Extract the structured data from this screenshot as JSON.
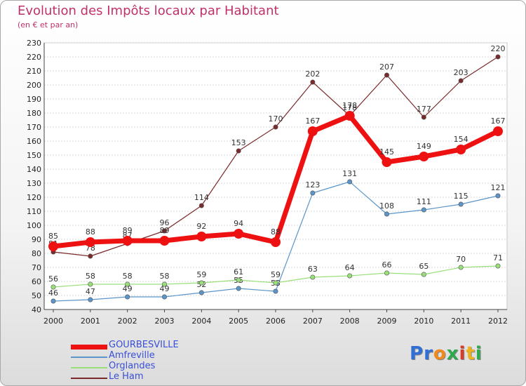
{
  "title": "Evolution des Impôts locaux par Habitant",
  "subtitle": "(en € et par an)",
  "logo_text": "Proxiti",
  "colors": {
    "gourbesville": "#ee1111",
    "amfreville": "#5b95c9",
    "orglandes": "#99e07a",
    "le_ham": "#7a2a2a",
    "title": "#c0306a",
    "legend_text": "#3a4fd8"
  },
  "chart_data": {
    "type": "line",
    "title": "Evolution des Impôts locaux par Habitant",
    "subtitle": "(en € et par an)",
    "x": [
      "2000",
      "2001",
      "2002",
      "2003",
      "2004",
      "2005",
      "2006",
      "2007",
      "2008",
      "2009",
      "2010",
      "2011",
      "2012"
    ],
    "ylim": [
      40,
      230
    ],
    "yticks": [
      40,
      50,
      60,
      70,
      80,
      90,
      100,
      110,
      120,
      130,
      140,
      150,
      160,
      170,
      180,
      190,
      200,
      210,
      220,
      230
    ],
    "grid": true,
    "legend": "bottom-left",
    "series": [
      {
        "name": "GOURBESVILLE",
        "values": [
          85,
          88,
          89,
          89,
          92,
          94,
          88,
          167,
          178,
          145,
          149,
          154,
          167
        ],
        "color": "#ee1111"
      },
      {
        "name": "Amfreville",
        "values": [
          46,
          47,
          49,
          49,
          52,
          55,
          53,
          123,
          131,
          108,
          111,
          115,
          121
        ],
        "color": "#5b95c9"
      },
      {
        "name": "Orglandes",
        "values": [
          56,
          58,
          58,
          58,
          59,
          61,
          59,
          63,
          64,
          66,
          65,
          70,
          71
        ],
        "color": "#99e07a"
      },
      {
        "name": "Le Ham",
        "values": [
          81,
          78,
          87,
          96,
          114,
          153,
          170,
          202,
          178,
          207,
          177,
          203,
          220
        ],
        "color": "#7a2a2a"
      }
    ]
  }
}
